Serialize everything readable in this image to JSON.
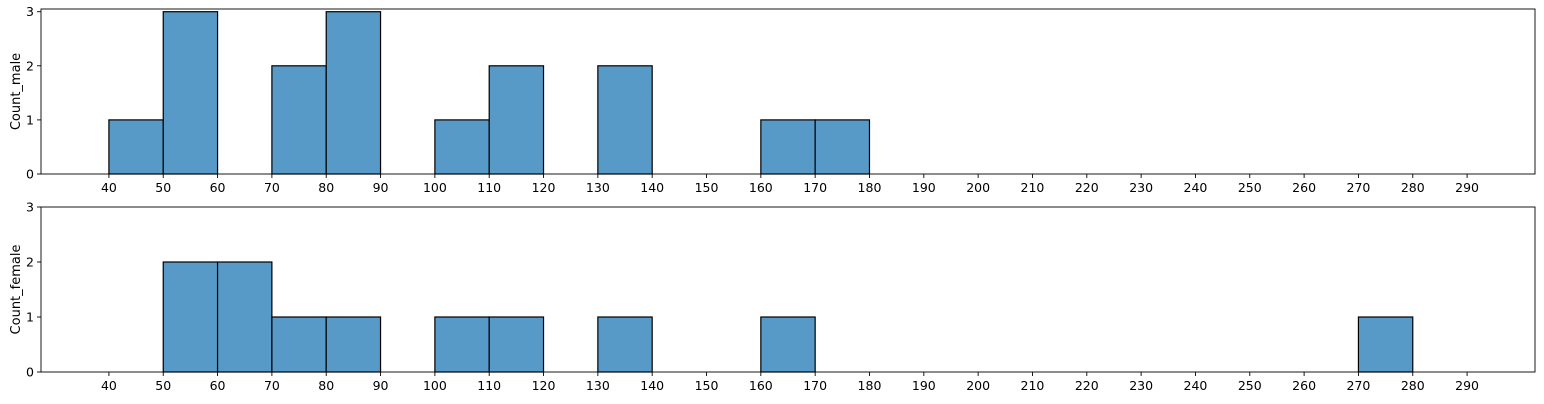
{
  "chart_data": [
    {
      "type": "bar",
      "histogram": true,
      "bin_edges": [
        40,
        50,
        60,
        70,
        80,
        90,
        100,
        110,
        120,
        130,
        140,
        150,
        160,
        170,
        180
      ],
      "values": [
        1,
        3,
        0,
        2,
        3,
        0,
        1,
        2,
        0,
        2,
        0,
        0,
        1,
        1
      ],
      "xlabel": "",
      "ylabel": "Count_male",
      "xticks": [
        40,
        50,
        60,
        70,
        80,
        90,
        100,
        110,
        120,
        130,
        140,
        150,
        160,
        170,
        180,
        190,
        200,
        210,
        220,
        230,
        240,
        250,
        260,
        270,
        280,
        290
      ],
      "yticks": [
        0,
        1,
        2,
        3
      ],
      "xlim": [
        27.5,
        302.5
      ],
      "ylim": [
        0,
        3.05
      ],
      "bar_color": "#5799c7",
      "grid": false
    },
    {
      "type": "bar",
      "histogram": true,
      "bin_edges": [
        50,
        60,
        70,
        80,
        90,
        100,
        110,
        120,
        130,
        140,
        150,
        160,
        170,
        180,
        190,
        200,
        210,
        220,
        230,
        240,
        250,
        260,
        270,
        280
      ],
      "values": [
        2,
        2,
        1,
        1,
        0,
        1,
        1,
        0,
        1,
        0,
        0,
        1,
        0,
        0,
        0,
        0,
        0,
        0,
        0,
        0,
        0,
        0,
        1
      ],
      "xlabel": "",
      "ylabel": "Count_female",
      "xticks": [
        40,
        50,
        60,
        70,
        80,
        90,
        100,
        110,
        120,
        130,
        140,
        150,
        160,
        170,
        180,
        190,
        200,
        210,
        220,
        230,
        240,
        250,
        260,
        270,
        280,
        290
      ],
      "yticks": [
        0,
        1,
        2,
        3
      ],
      "xlim": [
        27.5,
        302.5
      ],
      "ylim": [
        0,
        3
      ],
      "bar_color": "#5799c7",
      "grid": false
    }
  ]
}
